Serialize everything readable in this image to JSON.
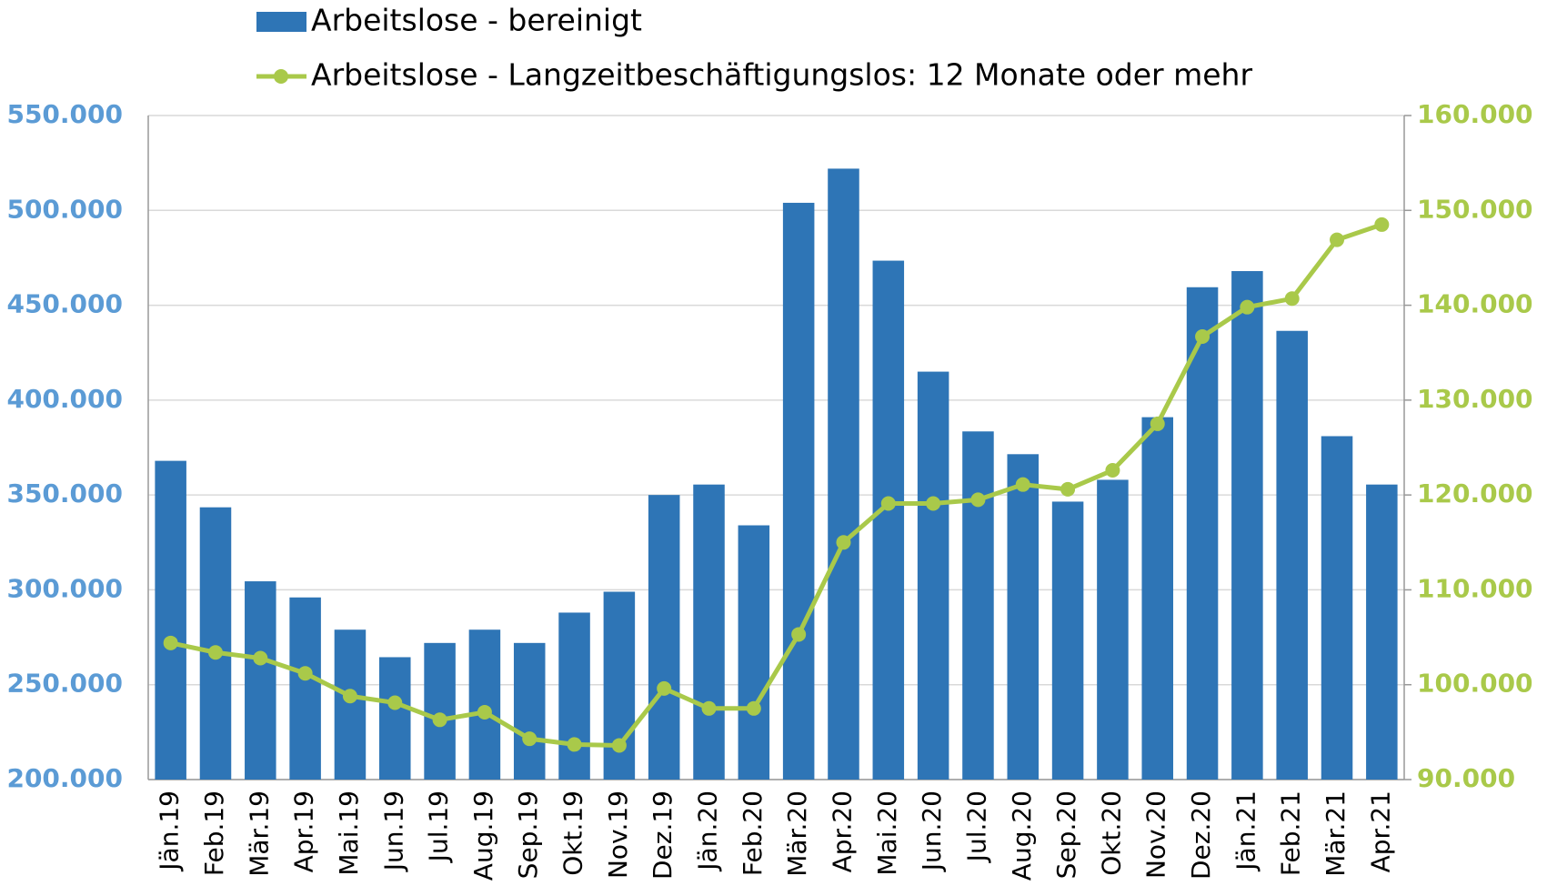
{
  "chart_data": {
    "type": "bar-line",
    "categories": [
      "Jän.19",
      "Feb.19",
      "Mär.19",
      "Apr.19",
      "Mai.19",
      "Jun.19",
      "Jul.19",
      "Aug.19",
      "Sep.19",
      "Okt.19",
      "Nov.19",
      "Dez.19",
      "Jän.20",
      "Feb.20",
      "Mär.20",
      "Apr.20",
      "Mai.20",
      "Jun.20",
      "Jul.20",
      "Aug.20",
      "Sep.20",
      "Okt.20",
      "Nov.20",
      "Dez.20",
      "Jän.21",
      "Feb.21",
      "Mär.21",
      "Apr.21"
    ],
    "series": [
      {
        "name": "Arbeitslose - bereinigt",
        "type": "bar",
        "color": "#2e75b6",
        "values": [
          368000,
          343500,
          304500,
          296000,
          279000,
          264500,
          272000,
          279000,
          272000,
          288000,
          299000,
          350000,
          355500,
          334000,
          504000,
          522000,
          473500,
          415000,
          383500,
          371500,
          346500,
          358000,
          391000,
          459500,
          468000,
          436500,
          381000,
          355500
        ]
      },
      {
        "name": "Arbeitslose - Langzeitbeschäftigungslos: 12 Monate oder mehr",
        "type": "line",
        "axis": "y2",
        "color": "#a9c94a",
        "values": [
          104400,
          103400,
          102800,
          101200,
          98800,
          98100,
          96300,
          97100,
          94300,
          93700,
          93600,
          99600,
          97500,
          97500,
          105300,
          115000,
          119100,
          119100,
          119500,
          121100,
          120600,
          122600,
          127500,
          136700,
          139800,
          140700,
          146900,
          148500
        ]
      }
    ],
    "ylim": [
      200000,
      550000
    ],
    "yticks": [
      {
        "value": 200000,
        "label": "200.000"
      },
      {
        "value": 250000,
        "label": "250.000"
      },
      {
        "value": 300000,
        "label": "300.000"
      },
      {
        "value": 350000,
        "label": "350.000"
      },
      {
        "value": 400000,
        "label": "400.000"
      },
      {
        "value": 450000,
        "label": "450.000"
      },
      {
        "value": 500000,
        "label": "500.000"
      },
      {
        "value": 550000,
        "label": "550.000"
      }
    ],
    "y2lim": [
      90000,
      160000
    ],
    "y2ticks": [
      {
        "value": 90000,
        "label": "90.000"
      },
      {
        "value": 100000,
        "label": "100.000"
      },
      {
        "value": 110000,
        "label": "110.000"
      },
      {
        "value": 120000,
        "label": "120.000"
      },
      {
        "value": 130000,
        "label": "130.000"
      },
      {
        "value": 140000,
        "label": "140.000"
      },
      {
        "value": 150000,
        "label": "150.000"
      },
      {
        "value": 160000,
        "label": "160.000"
      }
    ],
    "grid": true
  }
}
